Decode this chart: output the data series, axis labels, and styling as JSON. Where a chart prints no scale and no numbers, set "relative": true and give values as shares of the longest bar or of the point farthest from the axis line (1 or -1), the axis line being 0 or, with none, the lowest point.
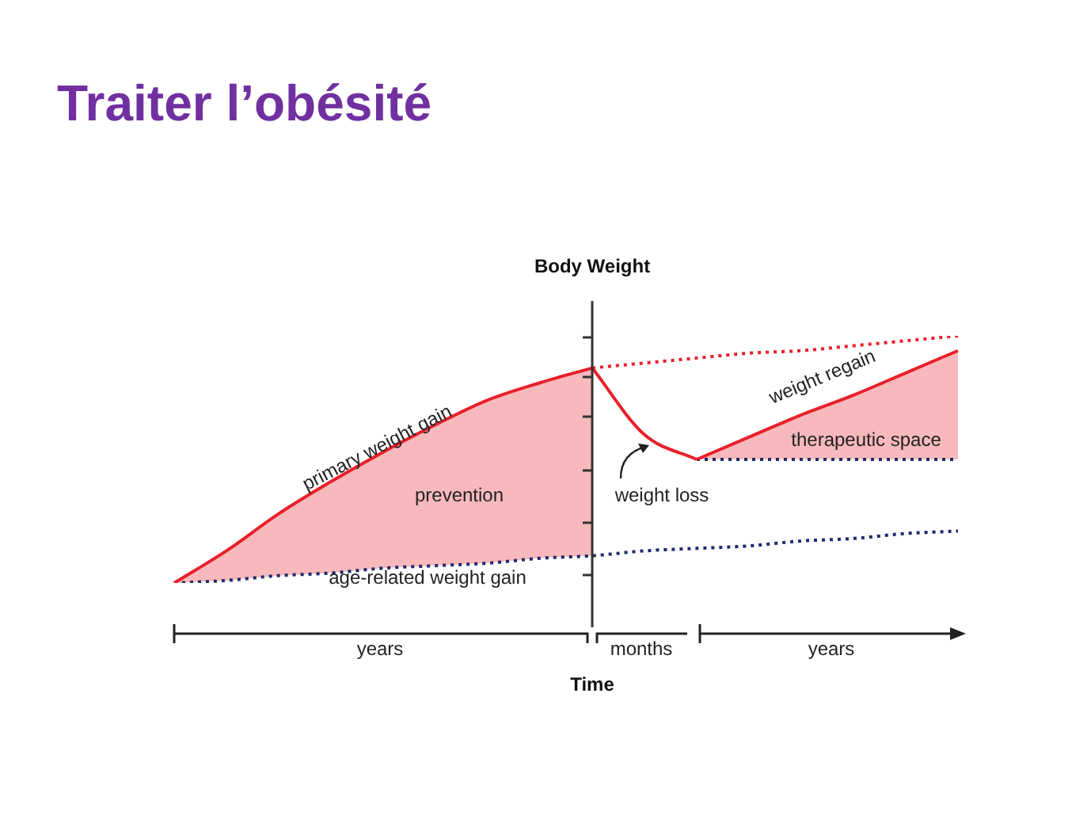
{
  "chart_data": {
    "type": "line",
    "title": "Traiter l’obésité",
    "xlabel": "Time",
    "ylabel": "Body Weight",
    "relative": true,
    "legend": false,
    "categories": [
      null,
      null,
      null,
      null,
      null,
      null,
      null,
      null,
      null,
      null,
      null,
      null,
      null,
      null,
      null,
      null
    ],
    "series": [
      {
        "name": "primary weight gain",
        "color": "#e8202a",
        "values": [
          0,
          0.13,
          0.28,
          0.41,
          0.53,
          0.64,
          0.74,
          0.81,
          0.87,
          null,
          null,
          null,
          null,
          null,
          null,
          null
        ],
        "lower": [
          0,
          0.01,
          0.03,
          0.04,
          0.06,
          0.07,
          0.08,
          0.1,
          0.11,
          null,
          null,
          null,
          null,
          null,
          null,
          null
        ],
        "upper": [
          0,
          0.13,
          0.28,
          0.41,
          0.53,
          0.64,
          0.74,
          0.81,
          0.87,
          null,
          null,
          null,
          null,
          null,
          null,
          null
        ]
      },
      {
        "color": "#1f2a6b",
        "line_style": "dotted",
        "values": [
          0,
          0.01,
          0.03,
          0.04,
          0.06,
          0.07,
          0.08,
          0.1,
          0.11,
          0.13,
          0.14,
          0.15,
          0.17,
          0.18,
          0.2,
          0.21
        ]
      },
      {
        "color": "#e8202a",
        "values": [
          null,
          null,
          null,
          null,
          null,
          null,
          null,
          null,
          0.87,
          0.6,
          0.5,
          null,
          null,
          null,
          null,
          null
        ]
      },
      {
        "name": "weight regain",
        "color": "#e8202a",
        "values": [
          null,
          null,
          null,
          null,
          null,
          null,
          null,
          null,
          null,
          null,
          0.5,
          0.59,
          0.68,
          0.76,
          0.85,
          0.94
        ],
        "lower": [
          null,
          null,
          null,
          null,
          null,
          null,
          null,
          null,
          null,
          null,
          0.5,
          0.5,
          0.5,
          0.5,
          0.5,
          0.5
        ],
        "upper": [
          null,
          null,
          null,
          null,
          null,
          null,
          null,
          null,
          null,
          null,
          0.5,
          0.59,
          0.68,
          0.76,
          0.85,
          0.94
        ]
      },
      {
        "color": "#e8202a",
        "line_style": "dotted",
        "values": [
          null,
          null,
          null,
          null,
          null,
          null,
          null,
          null,
          0.87,
          0.89,
          0.91,
          0.93,
          0.94,
          0.96,
          0.98,
          1
        ]
      },
      {
        "color": "#1f2a6b",
        "line_style": "dotted",
        "values": [
          null,
          null,
          null,
          null,
          null,
          null,
          null,
          null,
          null,
          null,
          0.5,
          0.5,
          0.5,
          0.5,
          0.5,
          0.5
        ]
      }
    ],
    "annotations": [
      "prevention",
      "age-related weight gain",
      "weight loss",
      "therapeutic space",
      "years",
      "months",
      "years"
    ]
  }
}
